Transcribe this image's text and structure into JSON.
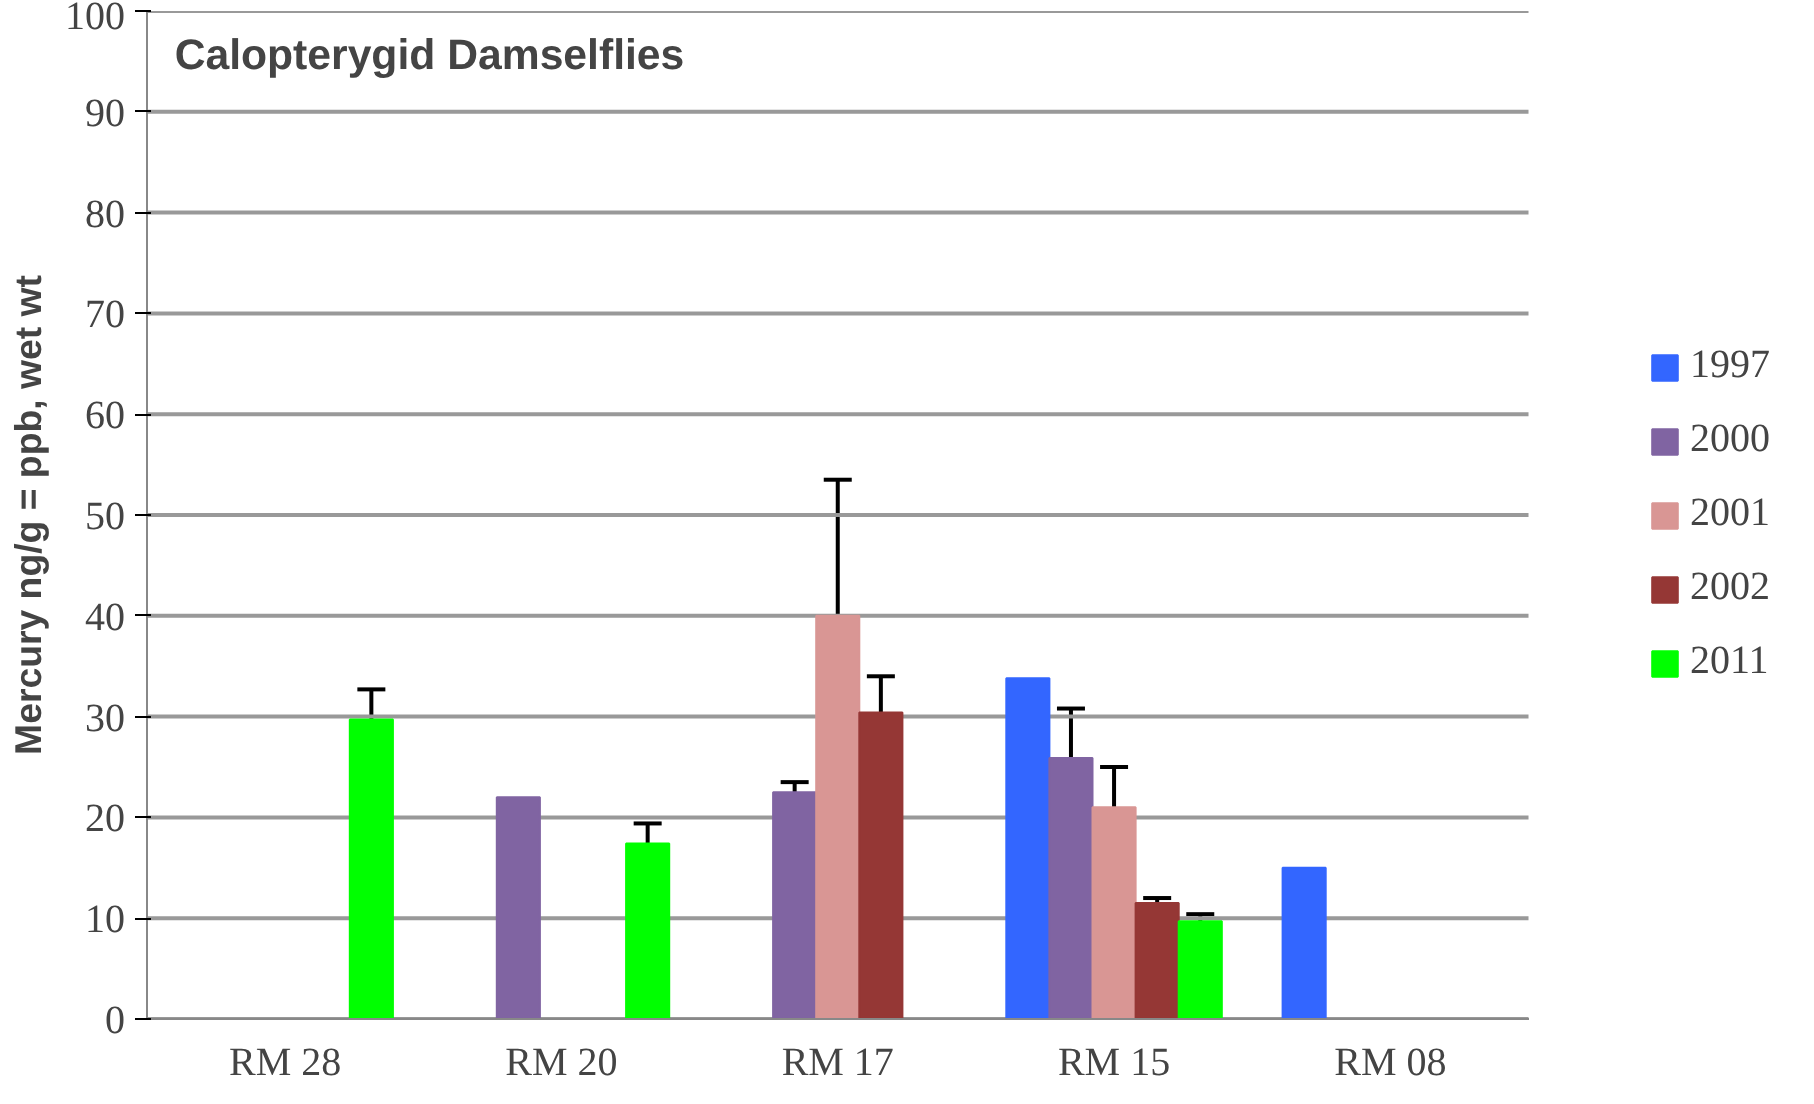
{
  "chart_data": {
    "type": "bar",
    "title": "Calopterygid Damselflies",
    "ylabel": "Mercury ng/g = ppb, wet wt",
    "categories": [
      "RM 28",
      "RM 20",
      "RM 17",
      "RM 15",
      "RM 08"
    ],
    "series": [
      {
        "name": "1997",
        "color": "#3366ff",
        "values": [
          null,
          null,
          null,
          33.8,
          15
        ]
      },
      {
        "name": "2000",
        "color": "#8064a2",
        "values": [
          null,
          22,
          22.5,
          25.9,
          null
        ],
        "errors": [
          null,
          null,
          1,
          4.9,
          null
        ]
      },
      {
        "name": "2001",
        "color": "#d99694",
        "values": [
          null,
          null,
          40,
          21,
          null
        ],
        "errors": [
          null,
          null,
          13.5,
          4,
          null
        ]
      },
      {
        "name": "2002",
        "color": "#953735",
        "values": [
          null,
          null,
          30.4,
          11.5,
          null
        ],
        "errors": [
          null,
          null,
          3.6,
          0.5,
          null
        ]
      },
      {
        "name": "2011",
        "color": "#00ff00",
        "values": [
          29.7,
          17.4,
          null,
          9.7,
          null
        ],
        "errors": [
          3,
          2,
          null,
          0.7,
          null
        ]
      }
    ],
    "ylim": [
      0,
      100
    ],
    "yticks": [
      0,
      10,
      20,
      30,
      40,
      50,
      60,
      70,
      80,
      90,
      100
    ],
    "grid": "y",
    "legend": "right"
  }
}
